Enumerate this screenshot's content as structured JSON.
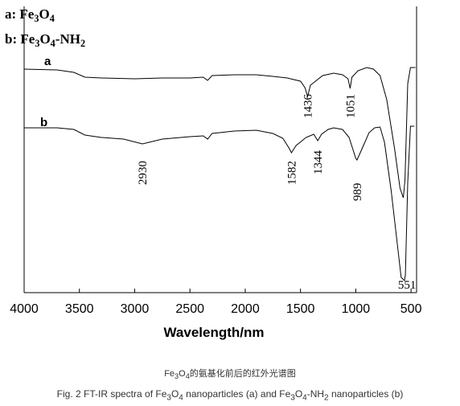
{
  "chart_data": {
    "type": "line",
    "xlabel": "Wavelength/nm",
    "ylabel": "",
    "xlim": [
      4000,
      450
    ],
    "x_reversed": true,
    "x_ticks": [
      "4000",
      "3500",
      "3000",
      "2500",
      "2000",
      "1500",
      "1000",
      "500"
    ],
    "grid": false,
    "legend_position": "top-left",
    "legend": [
      {
        "key": "a:",
        "label": "Fe3O4",
        "tex": [
          [
            "Fe",
            0
          ],
          [
            "3",
            1
          ],
          [
            "O",
            0
          ],
          [
            "4",
            1
          ]
        ]
      },
      {
        "key": "b:",
        "label": "Fe3O4-NH2",
        "tex": [
          [
            "Fe",
            0
          ],
          [
            "3",
            1
          ],
          [
            "O",
            0
          ],
          [
            "4",
            1
          ],
          [
            "-NH",
            0
          ],
          [
            "2",
            1
          ]
        ]
      }
    ],
    "series": [
      {
        "name": "a",
        "annotations": [
          "1436",
          "1051"
        ],
        "points": [
          [
            4000,
            0.02
          ],
          [
            3700,
            0.03
          ],
          [
            3550,
            0.06
          ],
          [
            3450,
            0.12
          ],
          [
            3300,
            0.13
          ],
          [
            3000,
            0.14
          ],
          [
            2750,
            0.13
          ],
          [
            2500,
            0.13
          ],
          [
            2380,
            0.12
          ],
          [
            2340,
            0.16
          ],
          [
            2300,
            0.1
          ],
          [
            2100,
            0.09
          ],
          [
            1900,
            0.09
          ],
          [
            1750,
            0.11
          ],
          [
            1620,
            0.13
          ],
          [
            1500,
            0.17
          ],
          [
            1460,
            0.25
          ],
          [
            1436,
            0.36
          ],
          [
            1410,
            0.22
          ],
          [
            1300,
            0.1
          ],
          [
            1200,
            0.07
          ],
          [
            1120,
            0.09
          ],
          [
            1070,
            0.14
          ],
          [
            1051,
            0.26
          ],
          [
            1035,
            0.12
          ],
          [
            980,
            0.04
          ],
          [
            900,
            0.0
          ],
          [
            840,
            0.02
          ],
          [
            780,
            0.1
          ],
          [
            720,
            0.4
          ],
          [
            650,
            1.0
          ],
          [
            600,
            1.5
          ],
          [
            570,
            1.62
          ],
          [
            555,
            1.4
          ],
          [
            530,
            0.2
          ],
          [
            505,
            0.0
          ],
          [
            460,
            0.0
          ]
        ]
      },
      {
        "name": "b",
        "annotations": [
          "2930",
          "1582",
          "1344",
          "989",
          "551"
        ],
        "points": [
          [
            4000,
            0.02
          ],
          [
            3700,
            0.02
          ],
          [
            3550,
            0.04
          ],
          [
            3450,
            0.11
          ],
          [
            3300,
            0.14
          ],
          [
            3100,
            0.16
          ],
          [
            2930,
            0.22
          ],
          [
            2750,
            0.16
          ],
          [
            2500,
            0.13
          ],
          [
            2380,
            0.12
          ],
          [
            2340,
            0.16
          ],
          [
            2300,
            0.09
          ],
          [
            2100,
            0.06
          ],
          [
            1900,
            0.05
          ],
          [
            1750,
            0.09
          ],
          [
            1660,
            0.15
          ],
          [
            1600,
            0.28
          ],
          [
            1582,
            0.33
          ],
          [
            1540,
            0.24
          ],
          [
            1450,
            0.14
          ],
          [
            1380,
            0.1
          ],
          [
            1344,
            0.18
          ],
          [
            1310,
            0.1
          ],
          [
            1250,
            0.04
          ],
          [
            1200,
            0.02
          ],
          [
            1120,
            0.04
          ],
          [
            1060,
            0.14
          ],
          [
            1000,
            0.4
          ],
          [
            989,
            0.42
          ],
          [
            950,
            0.3
          ],
          [
            880,
            0.08
          ],
          [
            830,
            0.02
          ],
          [
            780,
            0.01
          ],
          [
            740,
            0.2
          ],
          [
            680,
            0.8
          ],
          [
            630,
            1.4
          ],
          [
            590,
            1.88
          ],
          [
            560,
            1.92
          ],
          [
            551,
            1.85
          ],
          [
            530,
            0.7
          ],
          [
            505,
            0.0
          ],
          [
            470,
            0.0
          ]
        ]
      }
    ]
  },
  "caption": {
    "zh": [
      [
        "Fe",
        0
      ],
      [
        "3",
        1
      ],
      [
        "O",
        0
      ],
      [
        "4",
        1
      ],
      [
        "的氨基化前后的红外光谱图",
        0
      ]
    ],
    "en": [
      [
        "Fig. 2  FT-IR spectra of Fe",
        0
      ],
      [
        "3",
        1
      ],
      [
        "O",
        0
      ],
      [
        "4",
        1
      ],
      [
        " nanoparticles (a) and Fe",
        0
      ],
      [
        "3",
        1
      ],
      [
        "O",
        0
      ],
      [
        "4",
        1
      ],
      [
        "-NH",
        0
      ],
      [
        "2",
        1
      ],
      [
        " nanoparticles (b)",
        0
      ]
    ]
  },
  "colors": {
    "line": "#000000",
    "caption": "#333333",
    "background": "#ffffff"
  }
}
